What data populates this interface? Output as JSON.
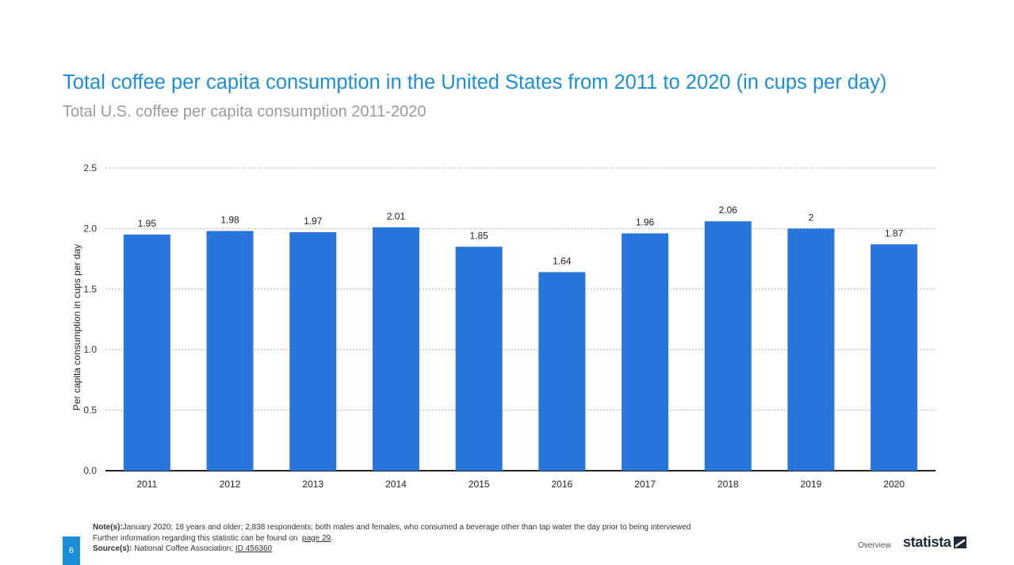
{
  "title": "Total coffee per capita consumption in the United States from 2011 to 2020 (in cups per day)",
  "subtitle": "Total U.S. coffee per capita consumption 2011-2020",
  "chart_data": {
    "type": "bar",
    "categories": [
      "2011",
      "2012",
      "2013",
      "2014",
      "2015",
      "2016",
      "2017",
      "2018",
      "2019",
      "2020"
    ],
    "values": [
      1.95,
      1.98,
      1.97,
      2.01,
      1.85,
      1.64,
      1.96,
      2.06,
      2,
      1.87
    ],
    "value_labels": [
      "1.95",
      "1.98",
      "1.97",
      "2.01",
      "1.85",
      "1.64",
      "1.96",
      "2.06",
      "2",
      "1.87"
    ],
    "ylabel": "Per capita consumption in cups per day",
    "xlabel": "",
    "ylim": [
      0,
      2.5
    ],
    "yticks": [
      "0.0",
      "0.5",
      "1.0",
      "1.5",
      "2.0",
      "2.5"
    ],
    "grid": true,
    "bar_color": "#2876dc"
  },
  "footer": {
    "notes_label": "Note(s):",
    "notes_text": "January 2020; 18 years and older; 2,838 respondents; both males and females, who consumed a beverage other than tap water the day prior to being interviewed",
    "further_info": "Further information regarding this statistic can be found on",
    "page_link": "page 29",
    "source_label": "Source(s):",
    "source_text": "National Coffee Association;",
    "source_id": "ID 456360",
    "page_number": "6",
    "overview": "Overview",
    "brand": "statista"
  }
}
